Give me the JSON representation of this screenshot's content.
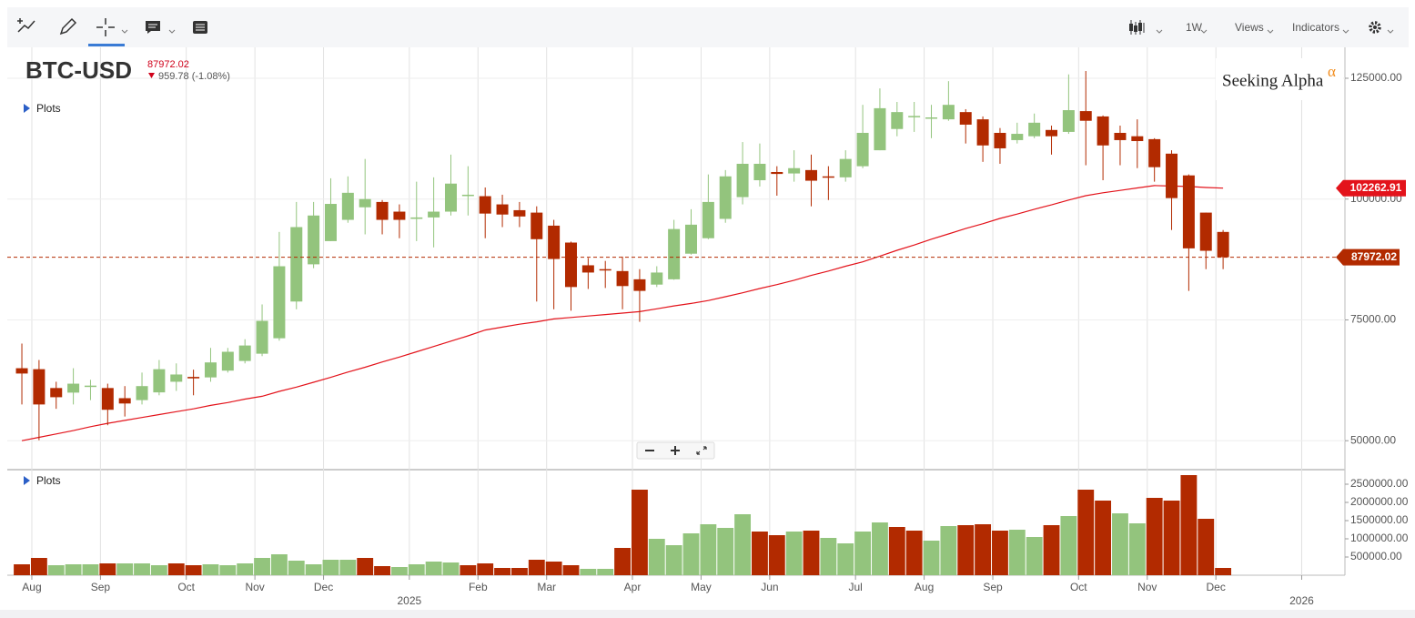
{
  "toolbar": {
    "interval": "1W",
    "views": "Views",
    "indicators": "Indicators"
  },
  "header": {
    "symbol": "BTC-USD",
    "change": "959.78 (-1.08%)",
    "price_plots": "Plots",
    "volume_plots": "Plots"
  },
  "logo": {
    "text": "Seeking Alpha",
    "mark": "α"
  },
  "chart_data": {
    "type": "candlestick",
    "categories": [
      null,
      "Aug",
      null,
      null,
      null,
      "Sep",
      null,
      null,
      null,
      null,
      "Oct",
      null,
      null,
      null,
      "Nov",
      null,
      null,
      null,
      "Dec",
      null,
      null,
      null,
      null,
      "2025",
      null,
      null,
      null,
      "Feb",
      null,
      null,
      null,
      "Mar",
      null,
      null,
      null,
      null,
      "Apr",
      null,
      null,
      null,
      "May",
      null,
      null,
      null,
      "Jun",
      null,
      null,
      null,
      null,
      "Jul",
      null,
      null,
      null,
      "Aug",
      null,
      null,
      null,
      "Sep",
      null,
      null,
      null,
      null,
      "Oct",
      null,
      null,
      null,
      "Nov",
      null,
      null,
      null,
      "Dec",
      null,
      null,
      null,
      null,
      "2026",
      null
    ],
    "open": [
      65000,
      64800,
      60900,
      59950,
      61200,
      60900,
      58800,
      58400,
      60000,
      62200,
      63200,
      63100,
      64500,
      66500,
      68000,
      71200,
      78800,
      86500,
      91300,
      95700,
      98300,
      99400,
      97400,
      95900,
      96200,
      97400,
      100700,
      100600,
      98900,
      97700,
      97200,
      94500,
      91000,
      86300,
      85500,
      85100,
      83400,
      82300,
      83400,
      88700,
      91900,
      95900,
      100400,
      103900,
      105600,
      105300,
      106000,
      104700,
      104500,
      106800,
      110100,
      114500,
      117000,
      116700,
      116500,
      118000,
      116500,
      113700,
      112200,
      113000,
      114300,
      113900,
      118200,
      117100,
      113700,
      113000,
      112400,
      109400,
      104900,
      97200,
      93200,
      null,
      null,
      null,
      null,
      null,
      null
    ],
    "high": [
      70100,
      66700,
      62200,
      65000,
      62600,
      61800,
      61300,
      64100,
      66700,
      66000,
      64700,
      69200,
      69200,
      71000,
      78200,
      93200,
      99400,
      99400,
      104300,
      104700,
      108300,
      99800,
      98900,
      103600,
      104500,
      109200,
      106800,
      102400,
      100900,
      99400,
      98500,
      95700,
      91200,
      87800,
      87200,
      88100,
      85500,
      86100,
      95700,
      97900,
      105100,
      106000,
      111800,
      111500,
      106800,
      110100,
      109200,
      106800,
      110100,
      119500,
      122900,
      120100,
      120100,
      119500,
      124400,
      118600,
      117100,
      114700,
      115800,
      117700,
      115200,
      125800,
      126500,
      117300,
      115200,
      116500,
      112600,
      110100,
      105100,
      97200,
      93600,
      null,
      null,
      null,
      null,
      null,
      null
    ],
    "low": [
      57500,
      50100,
      56600,
      57500,
      58400,
      53200,
      55000,
      57500,
      59400,
      60300,
      59400,
      62200,
      64100,
      66000,
      67500,
      70700,
      77200,
      85700,
      91300,
      95100,
      92700,
      92700,
      91900,
      91300,
      90000,
      96600,
      96600,
      91900,
      94200,
      94200,
      78800,
      77200,
      76900,
      81400,
      81600,
      77200,
      74600,
      81800,
      83300,
      88500,
      91700,
      95100,
      98900,
      102600,
      100700,
      103600,
      98500,
      99800,
      103600,
      106400,
      110100,
      113000,
      113900,
      112600,
      116200,
      111500,
      107700,
      107300,
      111500,
      112600,
      109200,
      113500,
      107000,
      103900,
      107000,
      106400,
      103600,
      93600,
      81000,
      85500,
      85500,
      null,
      null,
      null,
      null,
      null,
      null
    ],
    "close": [
      63900,
      57500,
      59000,
      61800,
      61400,
      56400,
      57700,
      61300,
      64800,
      63700,
      62900,
      66200,
      68400,
      69700,
      74800,
      86100,
      94200,
      96600,
      99000,
      101300,
      100000,
      95700,
      95700,
      96200,
      97400,
      103200,
      100900,
      97000,
      96800,
      96400,
      91700,
      87600,
      81800,
      84800,
      85300,
      82000,
      81000,
      84800,
      93800,
      94700,
      99400,
      104700,
      107300,
      107300,
      105200,
      106400,
      103800,
      104500,
      108300,
      113700,
      118800,
      118000,
      117200,
      116900,
      119500,
      115400,
      111100,
      110500,
      113500,
      115800,
      113000,
      118400,
      116200,
      111100,
      112200,
      112000,
      106600,
      100200,
      89800,
      89300,
      87972.02,
      null,
      null,
      null,
      null,
      null,
      null
    ],
    "up_color": "#93c47d",
    "down_color": "#b22a00",
    "ylim": [
      44200,
      131400
    ],
    "yticks": [
      {
        "value": 50000,
        "label": "50000.00"
      },
      {
        "value": 75000,
        "label": "75000.00"
      },
      {
        "value": 100000,
        "label": "100000.00"
      },
      {
        "value": 125000,
        "label": "125000.00"
      }
    ],
    "grid": true,
    "last_price_line": true,
    "sma": {
      "color": "#e3131b",
      "values": [
        50000,
        50700,
        51400,
        52100,
        52900,
        53600,
        54200,
        54800,
        55400,
        56000,
        56600,
        57300,
        57900,
        58600,
        59200,
        60200,
        61100,
        62100,
        63100,
        64200,
        65200,
        66300,
        67300,
        68400,
        69500,
        70600,
        71700,
        72900,
        73500,
        74100,
        74600,
        75200,
        75500,
        75800,
        76100,
        76400,
        76700,
        77300,
        77900,
        78400,
        79000,
        79800,
        80600,
        81500,
        82300,
        83200,
        84200,
        85100,
        86100,
        87000,
        88200,
        89400,
        90500,
        91700,
        92800,
        93900,
        94900,
        96000,
        96900,
        97900,
        98800,
        99800,
        100700,
        101300,
        101800,
        102300,
        102800,
        102700,
        102600,
        102400,
        102262.91,
        null,
        null,
        null,
        null,
        null,
        null
      ]
    },
    "volume": {
      "values": [
        300000,
        475000,
        275000,
        300000,
        300000,
        325000,
        325000,
        325000,
        275000,
        325000,
        275000,
        300000,
        275000,
        325000,
        475000,
        575000,
        400000,
        300000,
        425000,
        425000,
        475000,
        250000,
        225000,
        300000,
        375000,
        350000,
        275000,
        325000,
        200000,
        200000,
        425000,
        375000,
        275000,
        175000,
        175000,
        750000,
        2350000,
        1000000,
        825000,
        1150000,
        1400000,
        1300000,
        1675000,
        1200000,
        1100000,
        1200000,
        1225000,
        1025000,
        875000,
        1200000,
        1450000,
        1325000,
        1225000,
        950000,
        1350000,
        1375000,
        1400000,
        1225000,
        1250000,
        1050000,
        1375000,
        1625000,
        2350000,
        2050000,
        1700000,
        1425000,
        2125000,
        2050000,
        2750000,
        1550000,
        200000,
        null,
        null,
        null,
        null,
        null,
        null
      ],
      "colors": [
        "#b22a00",
        "#b22a00",
        "#93c47d",
        "#93c47d",
        "#93c47d",
        "#b22a00",
        "#93c47d",
        "#93c47d",
        "#93c47d",
        "#b22a00",
        "#b22a00",
        "#93c47d",
        "#93c47d",
        "#93c47d",
        "#93c47d",
        "#93c47d",
        "#93c47d",
        "#93c47d",
        "#93c47d",
        "#93c47d",
        "#b22a00",
        "#b22a00",
        "#93c47d",
        "#93c47d",
        "#93c47d",
        "#93c47d",
        "#b22a00",
        "#b22a00",
        "#b22a00",
        "#b22a00",
        "#b22a00",
        "#b22a00",
        "#b22a00",
        "#93c47d",
        "#93c47d",
        "#b22a00",
        "#b22a00",
        "#93c47d",
        "#93c47d",
        "#93c47d",
        "#93c47d",
        "#93c47d",
        "#93c47d",
        "#b22a00",
        "#b22a00",
        "#93c47d",
        "#b22a00",
        "#93c47d",
        "#93c47d",
        "#93c47d",
        "#93c47d",
        "#b22a00",
        "#b22a00",
        "#93c47d",
        "#93c47d",
        "#b22a00",
        "#b22a00",
        "#b22a00",
        "#93c47d",
        "#93c47d",
        "#b22a00",
        "#93c47d",
        "#b22a00",
        "#b22a00",
        "#93c47d",
        "#93c47d",
        "#b22a00",
        "#b22a00",
        "#b22a00",
        "#b22a00",
        "#b22a00",
        null,
        null,
        null,
        null,
        null,
        null
      ],
      "ylim": [
        0,
        2850000
      ],
      "yticks": [
        {
          "value": 500000,
          "label": "500000.00"
        },
        {
          "value": 1000000,
          "label": "1000000.00"
        },
        {
          "value": 1500000,
          "label": "1500000.00"
        },
        {
          "value": 2000000,
          "label": "2000000.00"
        },
        {
          "value": 2500000,
          "label": "2500000.00"
        }
      ]
    }
  }
}
